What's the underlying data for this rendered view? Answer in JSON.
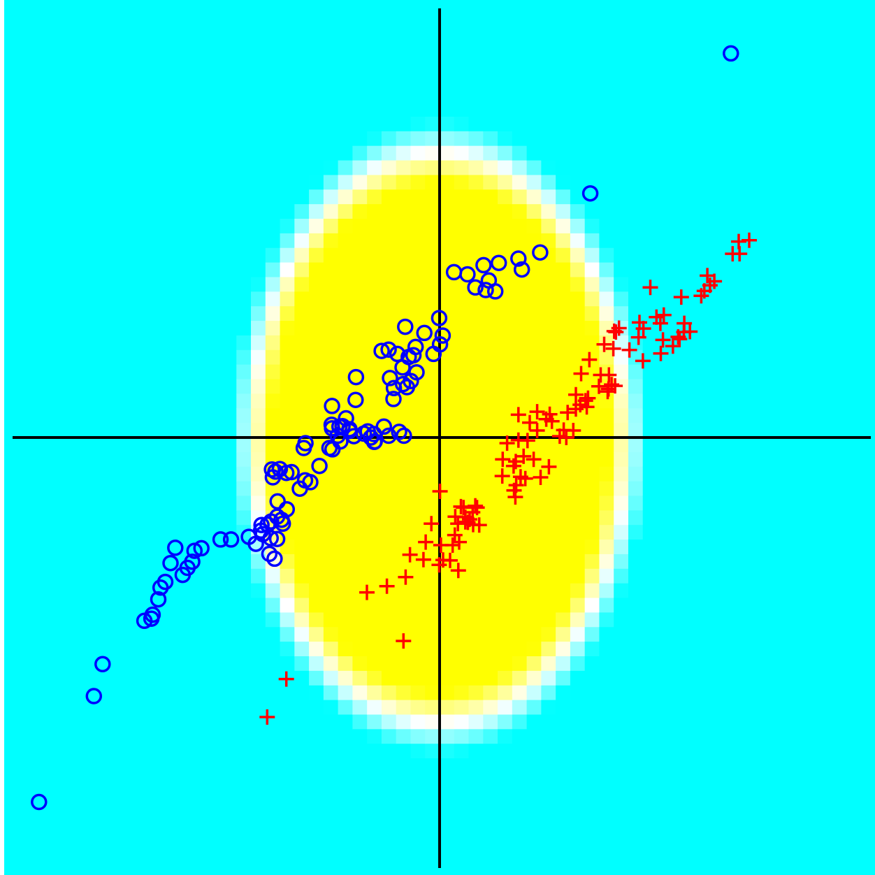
{
  "chart_data": {
    "type": "scatter",
    "title": "",
    "xlabel": "",
    "ylabel": "",
    "xlim": [
      -1.0,
      1.0
    ],
    "ylim": [
      -1.0,
      1.0
    ],
    "axes_cross_at_origin": true,
    "grid": false,
    "legend": "none",
    "background": {
      "kind": "heatmap",
      "description_colors": {
        "outside": "#00ffff",
        "inside": "#ffff00"
      },
      "ellipse": {
        "cx": 0.0,
        "cy": 0.0,
        "rx": 0.47,
        "ry": 0.71
      },
      "falloff": 0.09
    },
    "series": [
      {
        "marker": "circle",
        "color": "#0000ff",
        "points": [
          [
            0.669,
            0.878
          ],
          [
            0.346,
            0.558
          ],
          [
            0.231,
            0.423
          ],
          [
            0.101,
            0.394
          ],
          [
            0.136,
            0.399
          ],
          [
            0.181,
            0.409
          ],
          [
            0.189,
            0.384
          ],
          [
            0.033,
            0.378
          ],
          [
            0.064,
            0.373
          ],
          [
            0.082,
            0.343
          ],
          [
            0.113,
            0.359
          ],
          [
            0.106,
            0.337
          ],
          [
            0.128,
            0.334
          ],
          [
            -0.079,
            0.253
          ],
          [
            -0.035,
            0.239
          ],
          [
            -0.001,
            0.273
          ],
          [
            0.007,
            0.233
          ],
          [
            0.001,
            0.213
          ],
          [
            -0.014,
            0.191
          ],
          [
            -0.055,
            0.207
          ],
          [
            -0.06,
            0.188
          ],
          [
            -0.097,
            0.191
          ],
          [
            -0.117,
            0.201
          ],
          [
            -0.133,
            0.198
          ],
          [
            -0.085,
            0.16
          ],
          [
            -0.066,
            0.129
          ],
          [
            -0.114,
            0.136
          ],
          [
            -0.105,
            0.113
          ],
          [
            -0.192,
            0.138
          ],
          [
            -0.106,
            0.088
          ],
          [
            -0.075,
            0.115
          ],
          [
            -0.084,
            0.122
          ],
          [
            -0.053,
            0.149
          ],
          [
            -0.071,
            0.184
          ],
          [
            -0.193,
            0.086
          ],
          [
            -0.247,
            0.072
          ],
          [
            -0.215,
            0.044
          ],
          [
            -0.174,
            0.009
          ],
          [
            -0.246,
            -0.027
          ],
          [
            -0.247,
            0.021
          ],
          [
            -0.234,
            0.004
          ],
          [
            -0.228,
            -0.009
          ],
          [
            -0.207,
            0.019
          ],
          [
            -0.248,
            0.029
          ],
          [
            -0.223,
            0.026
          ],
          [
            -0.23,
            0.025
          ],
          [
            -0.149,
            -0.009
          ],
          [
            -0.151,
            0.008
          ],
          [
            -0.165,
            0.014
          ],
          [
            -0.207,
            0.015
          ],
          [
            -0.197,
            0.003
          ],
          [
            -0.312,
            -0.024
          ],
          [
            -0.308,
            -0.013
          ],
          [
            -0.276,
            -0.065
          ],
          [
            -0.253,
            -0.024
          ],
          [
            -0.15,
            -0.01
          ],
          [
            -0.117,
            0.004
          ],
          [
            -0.158,
            0.0
          ],
          [
            -0.128,
            0.025
          ],
          [
            -0.093,
            0.013
          ],
          [
            -0.082,
            0.004
          ],
          [
            -0.377,
            -0.078
          ],
          [
            -0.367,
            -0.072
          ],
          [
            -0.385,
            -0.073
          ],
          [
            -0.383,
            -0.091
          ],
          [
            -0.352,
            -0.081
          ],
          [
            -0.34,
            -0.079
          ],
          [
            -0.309,
            -0.098
          ],
          [
            -0.297,
            -0.102
          ],
          [
            -0.321,
            -0.117
          ],
          [
            -0.372,
            -0.146
          ],
          [
            -0.351,
            -0.164
          ],
          [
            -0.373,
            -0.181
          ],
          [
            -0.387,
            -0.192
          ],
          [
            -0.395,
            -0.199
          ],
          [
            -0.363,
            -0.188
          ],
          [
            -0.36,
            -0.197
          ],
          [
            -0.388,
            -0.23
          ],
          [
            -0.41,
            -0.213
          ],
          [
            -0.422,
            -0.243
          ],
          [
            -0.406,
            -0.221
          ],
          [
            -0.373,
            -0.232
          ],
          [
            -0.379,
            -0.277
          ],
          [
            -0.391,
            -0.266
          ],
          [
            -0.409,
            -0.2
          ],
          [
            -0.438,
            -0.227
          ],
          [
            -0.479,
            -0.233
          ],
          [
            -0.503,
            -0.233
          ],
          [
            -0.547,
            -0.253
          ],
          [
            -0.563,
            -0.259
          ],
          [
            -0.618,
            -0.287
          ],
          [
            -0.607,
            -0.252
          ],
          [
            -0.568,
            -0.284
          ],
          [
            -0.579,
            -0.298
          ],
          [
            -0.59,
            -0.314
          ],
          [
            -0.63,
            -0.33
          ],
          [
            -0.641,
            -0.343
          ],
          [
            -0.646,
            -0.37
          ],
          [
            -0.678,
            -0.419
          ],
          [
            -0.659,
            -0.405
          ],
          [
            -0.662,
            -0.414
          ],
          [
            -0.774,
            -0.518
          ],
          [
            -0.794,
            -0.591
          ],
          [
            -0.92,
            -0.833
          ]
        ]
      },
      {
        "marker": "plus",
        "color": "#ff0000",
        "points": [
          [
            0.711,
            0.451
          ],
          [
            0.687,
            0.448
          ],
          [
            0.689,
            0.42
          ],
          [
            0.673,
            0.42
          ],
          [
            0.615,
            0.37
          ],
          [
            0.631,
            0.357
          ],
          [
            0.621,
            0.348
          ],
          [
            0.608,
            0.335
          ],
          [
            0.601,
            0.324
          ],
          [
            0.555,
            0.321
          ],
          [
            0.484,
            0.343
          ],
          [
            0.515,
            0.28
          ],
          [
            0.507,
            0.261
          ],
          [
            0.498,
            0.275
          ],
          [
            0.562,
            0.261
          ],
          [
            0.561,
            0.241
          ],
          [
            0.459,
            0.263
          ],
          [
            0.468,
            0.249
          ],
          [
            0.401,
            0.243
          ],
          [
            0.405,
            0.241
          ],
          [
            0.412,
            0.25
          ],
          [
            0.457,
            0.229
          ],
          [
            0.513,
            0.223
          ],
          [
            0.551,
            0.225
          ],
          [
            0.575,
            0.242
          ],
          [
            0.536,
            0.209
          ],
          [
            0.548,
            0.23
          ],
          [
            0.399,
            0.203
          ],
          [
            0.378,
            0.213
          ],
          [
            0.436,
            0.2
          ],
          [
            0.508,
            0.192
          ],
          [
            0.467,
            0.175
          ],
          [
            0.344,
            0.178
          ],
          [
            0.37,
            0.143
          ],
          [
            0.325,
            0.146
          ],
          [
            0.389,
            0.143
          ],
          [
            0.313,
            0.098
          ],
          [
            0.395,
            0.121
          ],
          [
            0.403,
            0.118
          ],
          [
            0.366,
            0.117
          ],
          [
            0.388,
            0.111
          ],
          [
            0.386,
            0.105
          ],
          [
            0.335,
            0.084
          ],
          [
            0.341,
            0.09
          ],
          [
            0.338,
            0.07
          ],
          [
            0.323,
            0.075
          ],
          [
            0.313,
            0.065
          ],
          [
            0.294,
            0.057
          ],
          [
            0.253,
            0.053
          ],
          [
            0.224,
            0.059
          ],
          [
            0.181,
            0.052
          ],
          [
            0.258,
            0.037
          ],
          [
            0.245,
            0.042
          ],
          [
            0.207,
            0.034
          ],
          [
            0.285,
            0.017
          ],
          [
            0.291,
            0.0
          ],
          [
            0.276,
            0.003
          ],
          [
            0.307,
            0.016
          ],
          [
            0.224,
            0.016
          ],
          [
            0.202,
            -0.007
          ],
          [
            0.181,
            -0.006
          ],
          [
            0.155,
            -0.013
          ],
          [
            0.145,
            -0.05
          ],
          [
            0.193,
            -0.043
          ],
          [
            0.216,
            -0.05
          ],
          [
            0.175,
            -0.055
          ],
          [
            0.17,
            -0.065
          ],
          [
            0.186,
            -0.09
          ],
          [
            0.144,
            -0.088
          ],
          [
            0.251,
            -0.067
          ],
          [
            0.232,
            -0.091
          ],
          [
            0.197,
            -0.094
          ],
          [
            0.176,
            -0.109
          ],
          [
            0.171,
            -0.121
          ],
          [
            0.174,
            -0.136
          ],
          [
            0.001,
            -0.123
          ],
          [
            0.049,
            -0.158
          ],
          [
            0.055,
            -0.16
          ],
          [
            0.082,
            -0.156
          ],
          [
            0.086,
            -0.16
          ],
          [
            0.059,
            -0.182
          ],
          [
            0.059,
            -0.193
          ],
          [
            0.069,
            -0.187
          ],
          [
            0.076,
            -0.171
          ],
          [
            0.036,
            -0.181
          ],
          [
            0.065,
            -0.194
          ],
          [
            0.042,
            -0.197
          ],
          [
            0.077,
            -0.199
          ],
          [
            0.091,
            -0.2
          ],
          [
            -0.019,
            -0.197
          ],
          [
            0.035,
            -0.223
          ],
          [
            0.03,
            -0.246
          ],
          [
            0.045,
            -0.239
          ],
          [
            0.003,
            -0.246
          ],
          [
            -0.032,
            -0.239
          ],
          [
            -0.068,
            -0.268
          ],
          [
            -0.037,
            -0.279
          ],
          [
            0.008,
            -0.28
          ],
          [
            0.024,
            -0.281
          ],
          [
            -0.001,
            -0.291
          ],
          [
            0.043,
            -0.304
          ],
          [
            -0.078,
            -0.319
          ],
          [
            -0.121,
            -0.34
          ],
          [
            -0.167,
            -0.354
          ],
          [
            -0.083,
            -0.465
          ],
          [
            -0.352,
            -0.552
          ],
          [
            -0.396,
            -0.639
          ]
        ]
      }
    ]
  }
}
